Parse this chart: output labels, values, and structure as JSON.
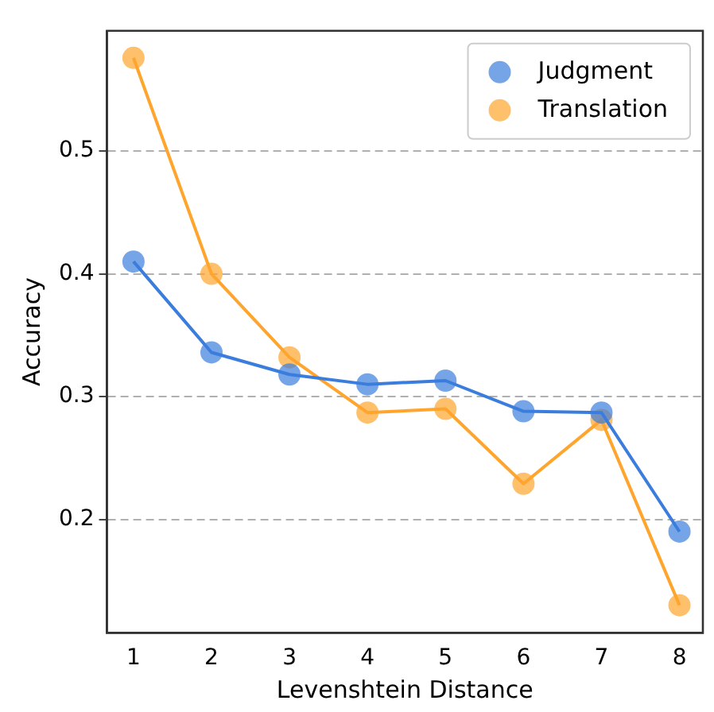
{
  "chart_data": {
    "type": "line",
    "xlabel": "Levenshtein Distance",
    "ylabel": "Accuracy",
    "x": [
      1,
      2,
      3,
      4,
      5,
      6,
      7,
      8
    ],
    "series": [
      {
        "name": "Judgment",
        "color": "#3b7ddd",
        "values": [
          0.41,
          0.336,
          0.318,
          0.31,
          0.313,
          0.288,
          0.287,
          0.19
        ]
      },
      {
        "name": "Translation",
        "color": "#ffa52e",
        "values": [
          0.576,
          0.4,
          0.332,
          0.287,
          0.29,
          0.229,
          0.281,
          0.13
        ]
      }
    ],
    "xlim": [
      0.66,
      8.3
    ],
    "xticks": [
      1,
      2,
      3,
      4,
      5,
      6,
      7,
      8
    ],
    "ylim": [
      0.1075,
      0.598
    ],
    "yticks": [
      0.2,
      0.3,
      0.4,
      0.5
    ],
    "grid": "y",
    "legend": "top right",
    "marker": "circle",
    "line_style": "solid"
  }
}
